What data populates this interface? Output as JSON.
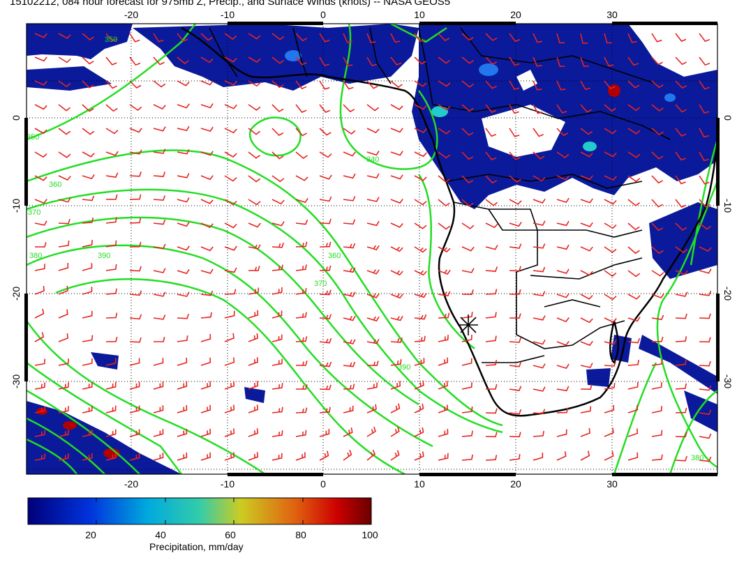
{
  "title": "15102212, 084 hour forecast for 975mb Z, Precip., and Surface Winds (knots) -- NASA GEOS5",
  "map": {
    "lon_ticks": [
      -20,
      -10,
      0,
      10,
      20,
      30
    ],
    "lat_ticks": [
      0,
      -10,
      -20,
      -30
    ],
    "lon_range": [
      -30,
      41
    ],
    "lat_range": [
      -39,
      10
    ],
    "contour_labels": [
      "350",
      "360",
      "370",
      "380",
      "390",
      "370",
      "360",
      "350",
      "340",
      "390",
      "380"
    ],
    "colors": {
      "wind_barbs": "#e8231f",
      "contours": "#22dd22",
      "coast": "#000000",
      "precip_low": "#00128c",
      "precip_mid": "#22cccc",
      "precip_high": "#b40000"
    },
    "marker": "station-star"
  },
  "colorbar": {
    "label": "Precipitation, mm/day",
    "ticks": [
      "20",
      "40",
      "60",
      "80",
      "100"
    ],
    "min": 0,
    "max": 100
  }
}
